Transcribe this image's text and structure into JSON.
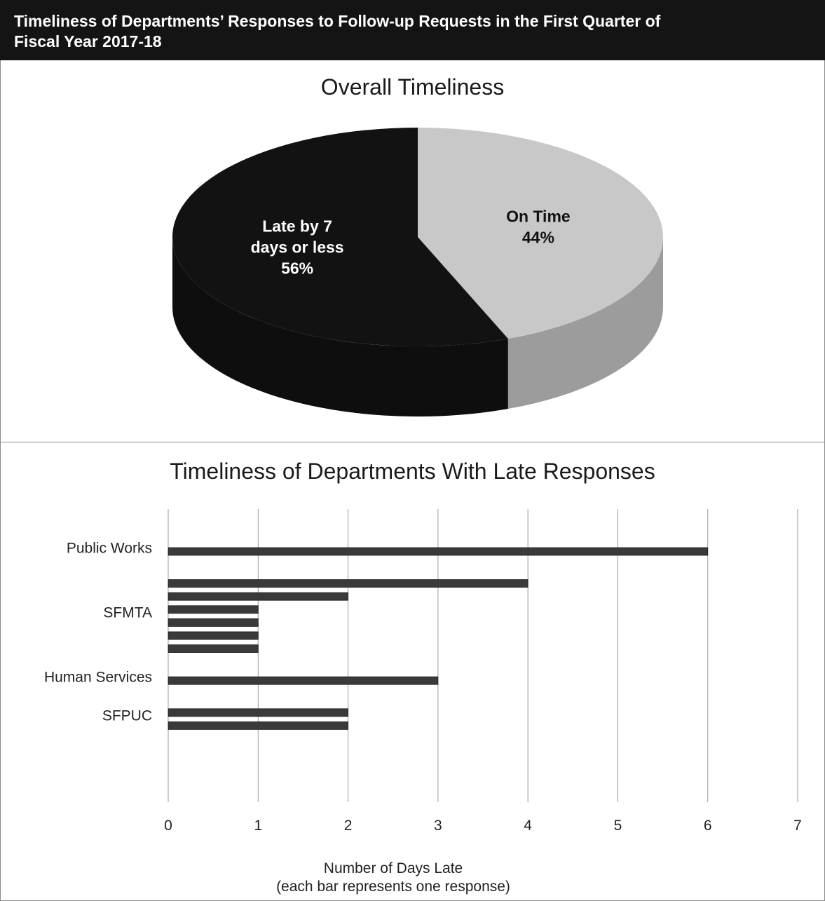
{
  "header": {
    "line1": "Timeliness of Departments’ Responses to Follow-up Requests in the First Quarter of",
    "line2": "Fiscal Year 2017-18"
  },
  "chart_data": [
    {
      "type": "pie",
      "title": "Overall Timeliness",
      "slices": [
        {
          "label_lines": [
            "On Time",
            "44%"
          ],
          "value": 44,
          "color": "#c8c8c8"
        },
        {
          "label_lines": [
            "Late by 7",
            "days or less",
            "56%"
          ],
          "value": 56,
          "color": "#121212"
        }
      ]
    },
    {
      "type": "bar",
      "orientation": "horizontal",
      "title": "Timeliness of Departments With Late Responses",
      "xlabel_lines": [
        "Number of Days Late",
        "(each bar represents one response)"
      ],
      "xlim": [
        0,
        7
      ],
      "xticks": [
        "0",
        "1",
        "2",
        "3",
        "4",
        "5",
        "6",
        "7"
      ],
      "grid": true,
      "bar_color": "#3a3a3a",
      "groups": [
        {
          "name": "Public Works",
          "values": [
            6
          ]
        },
        {
          "name": "SFMTA",
          "values": [
            4,
            2,
            1,
            1,
            1,
            1
          ]
        },
        {
          "name": "Human Services",
          "values": [
            3
          ]
        },
        {
          "name": "SFPUC",
          "values": [
            2,
            2
          ]
        }
      ]
    }
  ]
}
